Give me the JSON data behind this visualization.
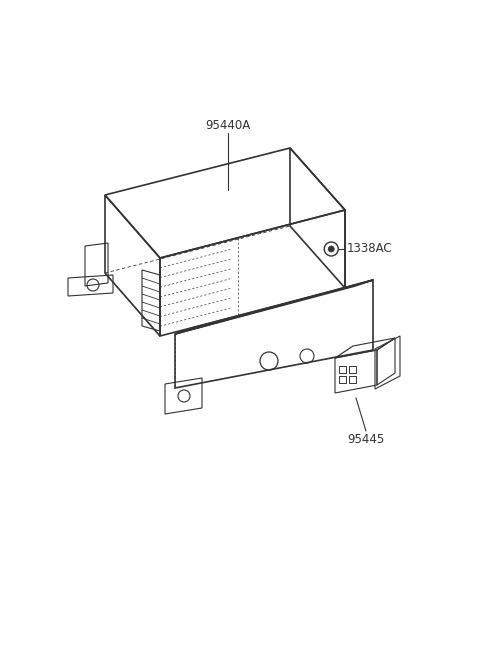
{
  "bg_color": "#ffffff",
  "line_color": "#333333",
  "text_color": "#333333",
  "label_95440A": "95440A",
  "label_1338AC": "1338AC",
  "label_95445": "95445",
  "figsize": [
    4.8,
    6.57
  ],
  "dpi": 100
}
